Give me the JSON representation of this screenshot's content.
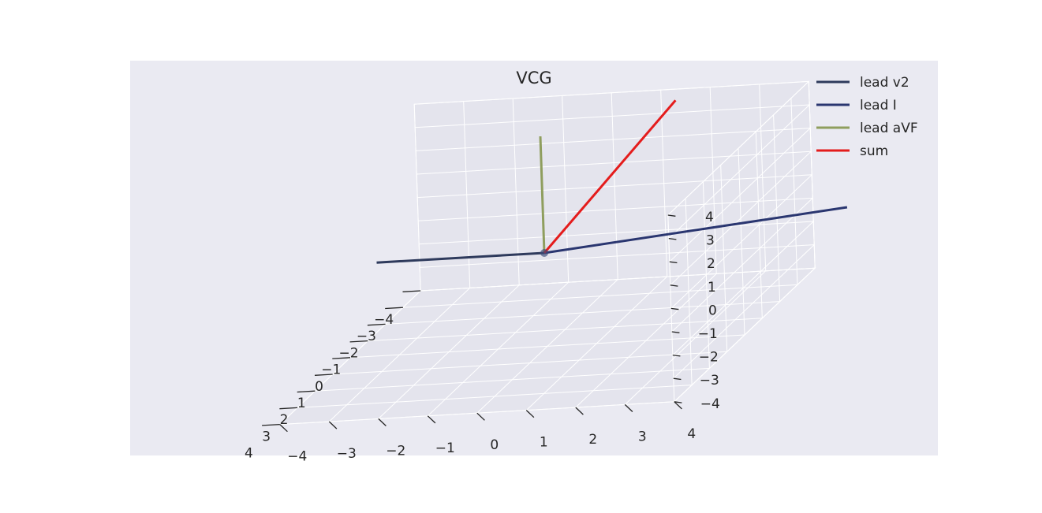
{
  "chart_data": {
    "type": "line",
    "projection": "3d",
    "title": "VCG",
    "xlim": [
      -4,
      4
    ],
    "ylim": [
      -4,
      4
    ],
    "zlim": [
      -4,
      4
    ],
    "x_ticks": [
      "−4",
      "−3",
      "−2",
      "−1",
      "0",
      "1",
      "2",
      "3",
      "4"
    ],
    "y_ticks": [
      "−4",
      "−3",
      "−2",
      "−1",
      "0",
      "1",
      "2",
      "3",
      "4"
    ],
    "z_ticks": [
      "−4",
      "−3",
      "−2",
      "−1",
      "0",
      "1",
      "2",
      "3",
      "4"
    ],
    "legend_position": "top-right",
    "series": [
      {
        "name": "lead v2",
        "color": "#2e3a5c",
        "from": [
          0,
          0,
          0
        ],
        "to": [
          0,
          -3.4,
          0
        ]
      },
      {
        "name": "lead I",
        "color": "#2a3670",
        "from": [
          0,
          0,
          0
        ],
        "to": [
          -1.8,
          5.5,
          0
        ]
      },
      {
        "name": "lead aVF",
        "color": "#8f9e5e",
        "from": [
          0,
          0,
          0
        ],
        "to": [
          0,
          0,
          5
        ]
      },
      {
        "name": "sum",
        "color": "#e41c1c",
        "from": [
          0,
          0,
          0
        ],
        "to": [
          -1.8,
          2.1,
          5
        ]
      }
    ]
  }
}
